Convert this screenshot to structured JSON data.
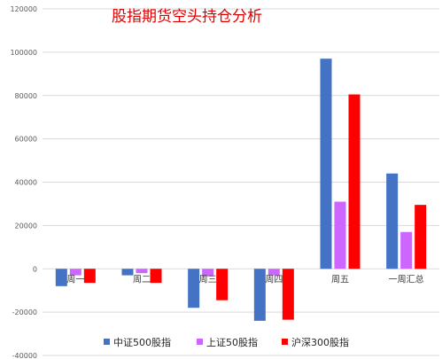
{
  "chart_data": {
    "type": "bar",
    "title": "股指期货空头持仓分析",
    "categories": [
      "周一",
      "周二",
      "周三",
      "周四",
      "周五",
      "一周汇总"
    ],
    "series": [
      {
        "name": "中证500股指",
        "values": [
          -8000,
          -3000,
          -18000,
          -24000,
          97000,
          44000
        ]
      },
      {
        "name": "上证50股指",
        "values": [
          -3000,
          -2000,
          -3500,
          -3000,
          31000,
          17000
        ]
      },
      {
        "name": "沪深300股指",
        "values": [
          -6500,
          -6500,
          -14500,
          -23500,
          80500,
          29500
        ]
      }
    ],
    "yticks": [
      "-40000",
      "-20000",
      "0",
      "20000",
      "40000",
      "60000",
      "80000",
      "100000",
      "120000"
    ],
    "ylim": [
      -40000,
      120000
    ],
    "grid": true,
    "legend_position": "bottom"
  },
  "colors": {
    "series": [
      "#4472C4",
      "#CC66FF",
      "#FF0000"
    ],
    "grid": "#D9D9D9",
    "title": "#E00000",
    "axis_text": "#595959"
  }
}
